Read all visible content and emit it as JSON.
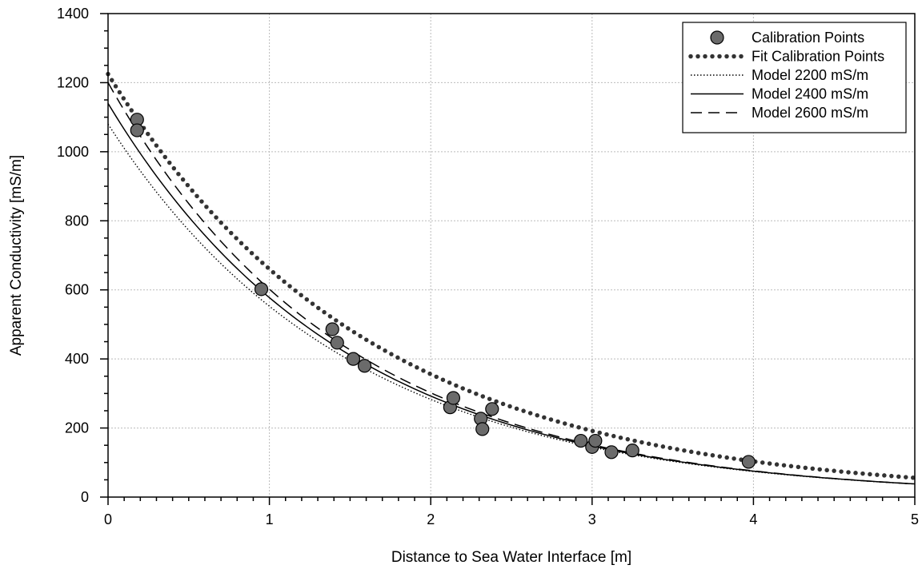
{
  "chart_data": {
    "type": "scatter",
    "xlabel": "Distance to Sea Water Interface [m]",
    "ylabel": "Apparent Conductivity [mS/m]",
    "xlim": [
      0,
      5
    ],
    "ylim": [
      0,
      1400
    ],
    "xticks": [
      0,
      1,
      2,
      3,
      4,
      5
    ],
    "yticks": [
      0,
      200,
      400,
      600,
      800,
      1000,
      1200,
      1400
    ],
    "grid": true,
    "legend_position": "top-right",
    "calibration_points": {
      "name": "Calibration Points",
      "x": [
        0.18,
        0.18,
        0.95,
        1.39,
        1.42,
        1.52,
        1.59,
        2.12,
        2.14,
        2.31,
        2.32,
        2.38,
        2.93,
        3.0,
        3.02,
        3.12,
        3.25,
        3.97
      ],
      "y": [
        1093,
        1062,
        602,
        486,
        447,
        400,
        380,
        260,
        287,
        227,
        197,
        255,
        163,
        145,
        163,
        130,
        135,
        102
      ]
    },
    "curves": [
      {
        "name": "Fit Calibration Points",
        "style": "dotted-thick",
        "a": 1225,
        "k": 0.618
      },
      {
        "name": "Model 2200 mS/m",
        "style": "dotted-thin",
        "a": 1080,
        "k": 0.67
      },
      {
        "name": "Model 2400 mS/m",
        "style": "solid",
        "a": 1140,
        "k": 0.68
      },
      {
        "name": "Model 2600 mS/m",
        "style": "dashed",
        "a": 1200,
        "k": 0.69
      }
    ],
    "colors": {
      "marker_fill": "#6b6b6b",
      "line": "#000000",
      "fit": "#333333",
      "grid": "#bbbbbb"
    }
  }
}
